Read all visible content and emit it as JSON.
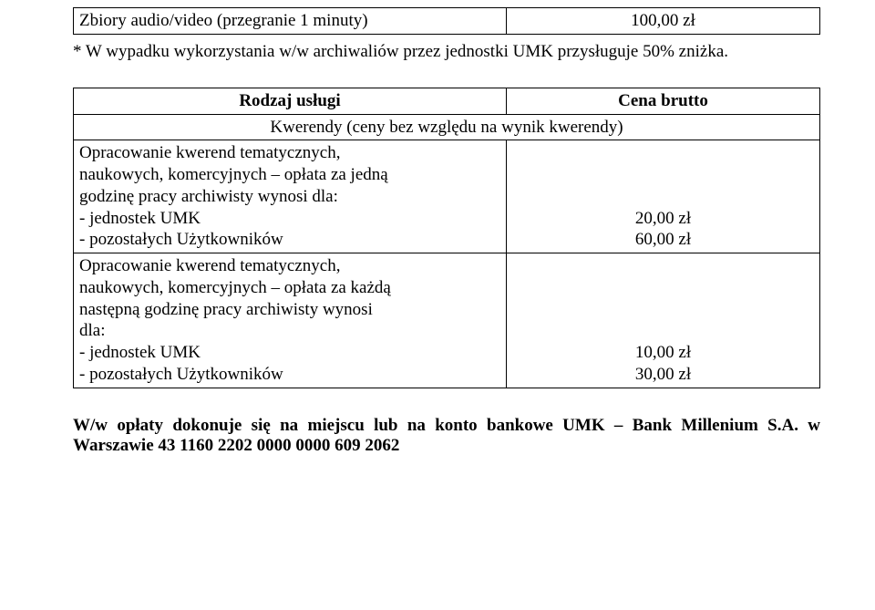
{
  "tableTop": {
    "row": {
      "service": "Zbiory audio/video (przegranie 1 minuty)",
      "price": "100,00 zł"
    }
  },
  "note1": "* W wypadku wykorzystania w/w archiwaliów przez jednostki UMK przysługuje 50% zniżka.",
  "table2": {
    "headerService": "Rodzaj usługi",
    "headerPrice": "Cena brutto",
    "sectionTitle": "Kwerendy (ceny bez względu na wynik kwerendy)",
    "row1": {
      "service": "Opracowanie kwerend tematycznych,\nnaukowych, komercyjnych – opłata za jedną\ngodzinę pracy archiwisty wynosi dla:\n- jednostek UMK\n- pozostałych Użytkowników",
      "price": "\n\n\n20,00 zł\n60,00 zł"
    },
    "row2": {
      "service": "Opracowanie kwerend tematycznych,\nnaukowych, komercyjnych – opłata za każdą\nnastępną godzinę pracy archiwisty wynosi\ndla:\n- jednostek UMK\n- pozostałych Użytkowników",
      "price": "\n\n\n\n10,00 zł\n30,00 zł"
    }
  },
  "footer": "W/w opłaty dokonuje się na miejscu lub na konto bankowe UMK – Bank Millenium S.A. w Warszawie 43 1160 2202 0000 0000 609 2062"
}
